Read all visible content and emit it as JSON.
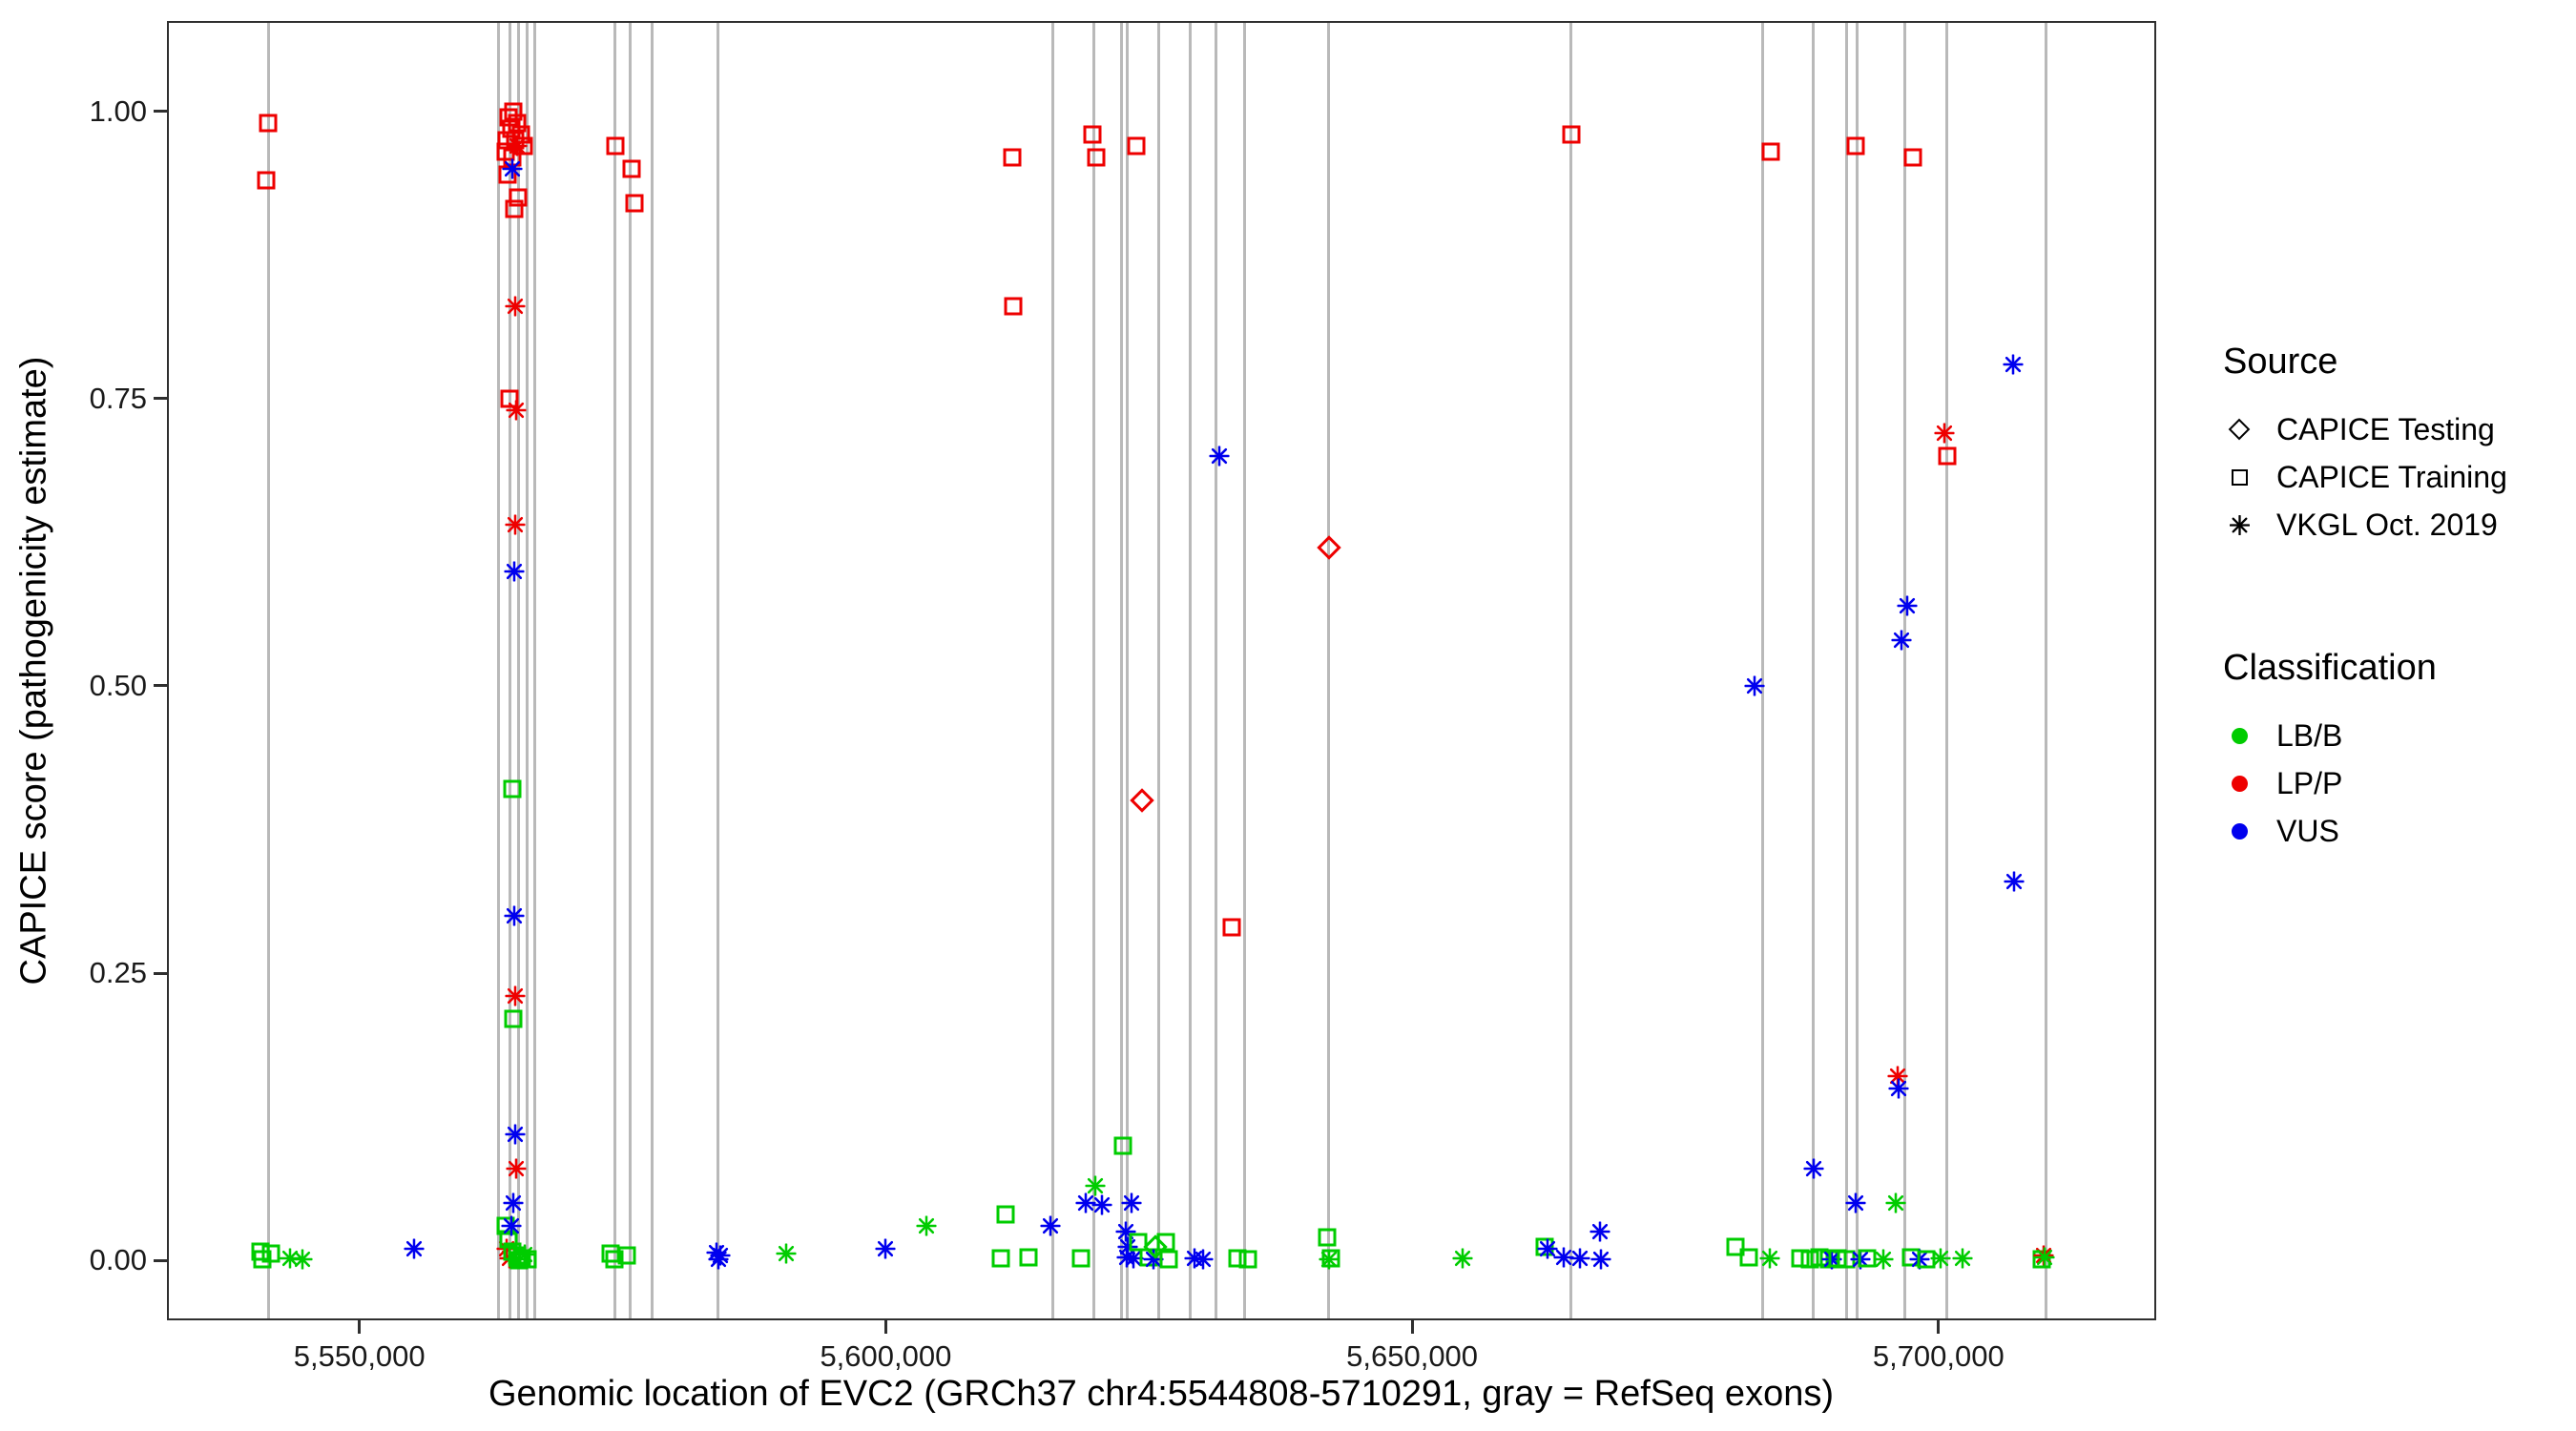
{
  "legend": {
    "source": {
      "title": "Source",
      "items": [
        {
          "label": "CAPICE Testing",
          "shape": "diamond"
        },
        {
          "label": "CAPICE Training",
          "shape": "square"
        },
        {
          "label": "VKGL Oct. 2019",
          "shape": "asterisk"
        }
      ]
    },
    "classification": {
      "title": "Classification",
      "items": [
        {
          "label": "LB/B",
          "color": "#00CC00"
        },
        {
          "label": "LP/P",
          "color": "#EE0000"
        },
        {
          "label": "VUS",
          "color": "#0000EE"
        }
      ]
    }
  },
  "chart_data": {
    "type": "scatter",
    "title": "",
    "xlabel": "Genomic location of EVC2 (GRCh37 chr4:5544808-5710291, gray = RefSeq exons)",
    "ylabel": "CAPICE score (pathogenicity estimate)",
    "x_domain": [
      5531900,
      5720500
    ],
    "y_domain": [
      -0.0505,
      1.077
    ],
    "x_ticks": [
      {
        "value": 5550000,
        "label": "5,550,000"
      },
      {
        "value": 5600000,
        "label": "5,600,000"
      },
      {
        "value": 5650000,
        "label": "5,650,000"
      },
      {
        "value": 5700000,
        "label": "5,700,000"
      }
    ],
    "y_ticks": [
      {
        "value": 0.0,
        "label": "0.00"
      },
      {
        "value": 0.25,
        "label": "0.25"
      },
      {
        "value": 0.5,
        "label": "0.50"
      },
      {
        "value": 0.75,
        "label": "0.75"
      },
      {
        "value": 1.0,
        "label": "1.00"
      }
    ],
    "grid": false,
    "legend_position": "right",
    "exon_line_color": "#b9b9b9",
    "exons": [
      5541400,
      5563200,
      5564300,
      5565100,
      5565900,
      5566700,
      5574300,
      5575700,
      5577800,
      5584100,
      5615900,
      5619800,
      5622400,
      5622900,
      5625900,
      5628900,
      5631400,
      5634100,
      5642100,
      5665100,
      5683300,
      5688100,
      5691300,
      5692300,
      5696800,
      5700800,
      5710200
    ],
    "class_colors": {
      "B": "#00CC00",
      "P": "#EE0000",
      "U": "#0000EE"
    },
    "source_codes": {
      "T": "CAPICE Testing (diamond)",
      "R": "CAPICE Training (square)",
      "V": "VKGL Oct. 2019 (asterisk)"
    },
    "class_codes": {
      "B": "LB/B",
      "P": "LP/P",
      "U": "VUS"
    },
    "points_format": [
      "genomic_position",
      "capice_score",
      "source_code",
      "classification_code"
    ],
    "points": [
      [
        5540600,
        0.008,
        "R",
        "B"
      ],
      [
        5540800,
        0.001,
        "R",
        "B"
      ],
      [
        5541100,
        0.94,
        "R",
        "P"
      ],
      [
        5541300,
        0.99,
        "R",
        "P"
      ],
      [
        5541600,
        0.006,
        "R",
        "B"
      ],
      [
        5543400,
        0.002,
        "V",
        "B"
      ],
      [
        5544600,
        0.001,
        "V",
        "B"
      ],
      [
        5555200,
        0.01,
        "V",
        "U"
      ],
      [
        5563900,
        0.965,
        "R",
        "P"
      ],
      [
        5563900,
        0.03,
        "R",
        "B"
      ],
      [
        5564000,
        0.975,
        "R",
        "P"
      ],
      [
        5564000,
        0.01,
        "V",
        "P"
      ],
      [
        5564100,
        0.945,
        "R",
        "P"
      ],
      [
        5564200,
        0.995,
        "R",
        "P"
      ],
      [
        5564200,
        0.018,
        "R",
        "B"
      ],
      [
        5564300,
        0.75,
        "R",
        "P"
      ],
      [
        5564300,
        0.002,
        "V",
        "P"
      ],
      [
        5564400,
        0.985,
        "R",
        "P"
      ],
      [
        5564400,
        0.03,
        "V",
        "U"
      ],
      [
        5564500,
        0.96,
        "R",
        "P"
      ],
      [
        5564500,
        0.95,
        "V",
        "U"
      ],
      [
        5564500,
        0.41,
        "R",
        "B"
      ],
      [
        5564500,
        0.008,
        "R",
        "B"
      ],
      [
        5564600,
        1.0,
        "R",
        "P"
      ],
      [
        5564600,
        0.21,
        "R",
        "B"
      ],
      [
        5564600,
        0.05,
        "V",
        "U"
      ],
      [
        5564700,
        0.915,
        "R",
        "P"
      ],
      [
        5564700,
        0.6,
        "V",
        "U"
      ],
      [
        5564700,
        0.3,
        "V",
        "U"
      ],
      [
        5564800,
        0.975,
        "R",
        "P"
      ],
      [
        5564800,
        0.83,
        "V",
        "P"
      ],
      [
        5564800,
        0.64,
        "V",
        "P"
      ],
      [
        5564800,
        0.23,
        "V",
        "P"
      ],
      [
        5564800,
        0.11,
        "V",
        "U"
      ],
      [
        5564900,
        0.74,
        "V",
        "P"
      ],
      [
        5564900,
        0.08,
        "V",
        "P"
      ],
      [
        5564900,
        0.001,
        "V",
        "B"
      ],
      [
        5565000,
        0.99,
        "R",
        "P"
      ],
      [
        5565000,
        0.97,
        "V",
        "P"
      ],
      [
        5565000,
        0.004,
        "R",
        "B"
      ],
      [
        5565100,
        0.925,
        "R",
        "P"
      ],
      [
        5565200,
        0.0,
        "R",
        "B"
      ],
      [
        5565300,
        0.98,
        "R",
        "P"
      ],
      [
        5565400,
        0.002,
        "R",
        "B"
      ],
      [
        5565600,
        0.97,
        "R",
        "P"
      ],
      [
        5565700,
        0.005,
        "V",
        "B"
      ],
      [
        5566000,
        0.001,
        "R",
        "B"
      ],
      [
        5573900,
        0.006,
        "R",
        "B"
      ],
      [
        5574200,
        0.001,
        "R",
        "B"
      ],
      [
        5574300,
        0.97,
        "R",
        "P"
      ],
      [
        5575400,
        0.004,
        "R",
        "B"
      ],
      [
        5575900,
        0.95,
        "R",
        "P"
      ],
      [
        5576100,
        0.92,
        "R",
        "P"
      ],
      [
        5583900,
        0.007,
        "V",
        "U"
      ],
      [
        5584100,
        0.001,
        "V",
        "U"
      ],
      [
        5584300,
        0.004,
        "V",
        "U"
      ],
      [
        5590500,
        0.006,
        "V",
        "B"
      ],
      [
        5600000,
        0.01,
        "V",
        "U"
      ],
      [
        5603900,
        0.03,
        "V",
        "B"
      ],
      [
        5610900,
        0.002,
        "R",
        "B"
      ],
      [
        5611400,
        0.04,
        "R",
        "B"
      ],
      [
        5612000,
        0.96,
        "R",
        "P"
      ],
      [
        5612100,
        0.83,
        "R",
        "P"
      ],
      [
        5613600,
        0.003,
        "R",
        "B"
      ],
      [
        5615600,
        0.03,
        "V",
        "U"
      ],
      [
        5618500,
        0.002,
        "R",
        "B"
      ],
      [
        5619000,
        0.05,
        "V",
        "U"
      ],
      [
        5619600,
        0.98,
        "R",
        "P"
      ],
      [
        5619900,
        0.065,
        "V",
        "B"
      ],
      [
        5620000,
        0.96,
        "R",
        "P"
      ],
      [
        5620500,
        0.048,
        "V",
        "U"
      ],
      [
        5622500,
        0.1,
        "R",
        "B"
      ],
      [
        5622800,
        0.025,
        "V",
        "U"
      ],
      [
        5622900,
        0.003,
        "V",
        "U"
      ],
      [
        5623000,
        0.012,
        "V",
        "U"
      ],
      [
        5623300,
        0.05,
        "V",
        "U"
      ],
      [
        5623500,
        0.002,
        "V",
        "U"
      ],
      [
        5623800,
        0.97,
        "R",
        "P"
      ],
      [
        5624000,
        0.016,
        "R",
        "B"
      ],
      [
        5624300,
        0.4,
        "T",
        "P"
      ],
      [
        5625000,
        0.003,
        "R",
        "B"
      ],
      [
        5625400,
        0.001,
        "V",
        "U"
      ],
      [
        5625600,
        0.012,
        "T",
        "B"
      ],
      [
        5626600,
        0.016,
        "R",
        "B"
      ],
      [
        5626900,
        0.001,
        "R",
        "B"
      ],
      [
        5629300,
        0.002,
        "V",
        "U"
      ],
      [
        5630100,
        0.001,
        "V",
        "U"
      ],
      [
        5631700,
        0.7,
        "V",
        "U"
      ],
      [
        5632900,
        0.29,
        "R",
        "P"
      ],
      [
        5633400,
        0.002,
        "R",
        "B"
      ],
      [
        5634400,
        0.001,
        "R",
        "B"
      ],
      [
        5641900,
        0.02,
        "R",
        "B"
      ],
      [
        5642100,
        0.62,
        "T",
        "P"
      ],
      [
        5642100,
        0.001,
        "V",
        "B"
      ],
      [
        5642300,
        0.002,
        "R",
        "B"
      ],
      [
        5654800,
        0.002,
        "V",
        "B"
      ],
      [
        5662600,
        0.012,
        "R",
        "B"
      ],
      [
        5662900,
        0.01,
        "V",
        "U"
      ],
      [
        5664400,
        0.003,
        "V",
        "U"
      ],
      [
        5665100,
        0.98,
        "R",
        "P"
      ],
      [
        5665900,
        0.002,
        "V",
        "U"
      ],
      [
        5667800,
        0.025,
        "V",
        "U"
      ],
      [
        5667900,
        0.001,
        "V",
        "U"
      ],
      [
        5680700,
        0.012,
        "R",
        "B"
      ],
      [
        5682000,
        0.003,
        "R",
        "B"
      ],
      [
        5682500,
        0.5,
        "V",
        "U"
      ],
      [
        5684000,
        0.002,
        "V",
        "B"
      ],
      [
        5684100,
        0.965,
        "R",
        "P"
      ],
      [
        5686900,
        0.002,
        "R",
        "B"
      ],
      [
        5687800,
        0.001,
        "R",
        "B"
      ],
      [
        5688100,
        0.08,
        "V",
        "U"
      ],
      [
        5688700,
        0.003,
        "R",
        "B"
      ],
      [
        5689600,
        0.001,
        "R",
        "B"
      ],
      [
        5689900,
        0.001,
        "V",
        "U"
      ],
      [
        5690400,
        0.002,
        "R",
        "B"
      ],
      [
        5691200,
        0.001,
        "R",
        "B"
      ],
      [
        5692100,
        0.97,
        "R",
        "P"
      ],
      [
        5692100,
        0.05,
        "V",
        "U"
      ],
      [
        5692600,
        0.001,
        "V",
        "U"
      ],
      [
        5693200,
        0.002,
        "R",
        "B"
      ],
      [
        5694800,
        0.001,
        "V",
        "B"
      ],
      [
        5695900,
        0.05,
        "V",
        "B"
      ],
      [
        5696100,
        0.16,
        "V",
        "P"
      ],
      [
        5696200,
        0.15,
        "V",
        "U"
      ],
      [
        5696500,
        0.54,
        "V",
        "U"
      ],
      [
        5697000,
        0.57,
        "V",
        "U"
      ],
      [
        5697400,
        0.003,
        "R",
        "B"
      ],
      [
        5697600,
        0.96,
        "R",
        "P"
      ],
      [
        5698200,
        0.001,
        "V",
        "U"
      ],
      [
        5698800,
        0.001,
        "R",
        "B"
      ],
      [
        5700200,
        0.002,
        "V",
        "B"
      ],
      [
        5700600,
        0.72,
        "V",
        "P"
      ],
      [
        5700800,
        0.7,
        "R",
        "P"
      ],
      [
        5702300,
        0.002,
        "V",
        "B"
      ],
      [
        5707100,
        0.78,
        "V",
        "U"
      ],
      [
        5707200,
        0.33,
        "V",
        "U"
      ],
      [
        5709800,
        0.001,
        "R",
        "B"
      ],
      [
        5710000,
        0.004,
        "V",
        "P"
      ],
      [
        5710100,
        0.003,
        "V",
        "B"
      ]
    ]
  }
}
